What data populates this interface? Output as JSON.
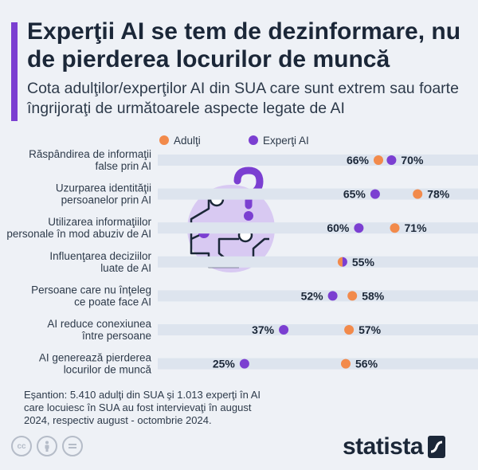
{
  "header": {
    "title": "Experţii AI se tem de dezinformare, nu de pierderea locurilor de muncă",
    "subtitle": "Cota adulţilor/experţilor AI din SUA care sunt extrem sau foarte îngrijoraţi de următoarele aspecte legate de AI"
  },
  "chart_data": {
    "type": "scatter",
    "style": "dumbbell-dot",
    "unit": "%",
    "categories": [
      [
        "Răspândirea de informaţii",
        "false prin AI"
      ],
      [
        "Uzurparea identităţii",
        "persoanelor prin AI"
      ],
      [
        "Utilizarea informaţiilor",
        "personale în mod abuziv de AI"
      ],
      [
        "Influenţarea deciziilor",
        "luate de AI"
      ],
      [
        "Persoane care nu înţeleg",
        "ce poate face AI"
      ],
      [
        "AI reduce conexiunea",
        "între persoane"
      ],
      [
        "AI generează pierderea",
        "locurilor de muncă"
      ]
    ],
    "series": [
      {
        "name": "Adulţi",
        "color": "#f28a4b",
        "values": [
          66,
          78,
          71,
          55,
          58,
          57,
          56
        ]
      },
      {
        "name": "Experţi AI",
        "color": "#7b3fd1",
        "values": [
          70,
          65,
          60,
          55,
          52,
          37,
          25
        ]
      }
    ],
    "legend_position": "top",
    "row_band_color": "#dde4ee",
    "grid": false
  },
  "footnote": "Eşantion: 5.410 adulţi din SUA şi 1.013 experţi în AI care locuiesc în SUA au fost intervievaţi în august 2024, respectiv august - octombrie 2024.",
  "brand": {
    "name": "statista",
    "logo_icon": "statista-logo-icon"
  },
  "license_icons": [
    "creative-commons-icon",
    "attribution-icon",
    "no-derivatives-icon"
  ]
}
